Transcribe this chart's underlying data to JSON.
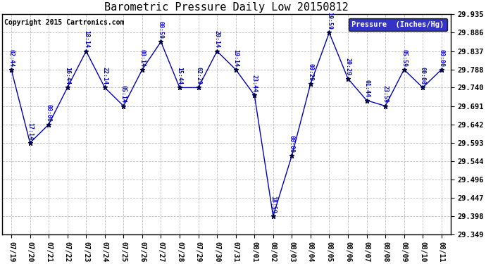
{
  "title": "Barometric Pressure Daily Low 20150812",
  "copyright": "Copyright 2015 Cartronics.com",
  "legend_label": "Pressure  (Inches/Hg)",
  "x_labels": [
    "07/19",
    "07/20",
    "07/21",
    "07/22",
    "07/23",
    "07/24",
    "07/25",
    "07/26",
    "07/27",
    "07/28",
    "07/29",
    "07/30",
    "07/31",
    "08/01",
    "08/02",
    "08/03",
    "08/04",
    "08/05",
    "08/06",
    "08/07",
    "08/08",
    "08/09",
    "08/10",
    "08/11"
  ],
  "point_labels": [
    "02:44",
    "17:14",
    "00:00",
    "16:44",
    "18:14",
    "22:14",
    "05:14",
    "00:14",
    "00:59",
    "15:44",
    "02:29",
    "20:14",
    "19:14",
    "23:44",
    "18:59",
    "00:00",
    "00:29",
    "19:59",
    "20:29",
    "01:44",
    "23:59",
    "05:59",
    "00:00",
    "00:00"
  ],
  "y_values": [
    29.788,
    29.593,
    29.642,
    29.74,
    29.837,
    29.74,
    29.691,
    29.788,
    29.862,
    29.74,
    29.74,
    29.837,
    29.788,
    29.72,
    29.398,
    29.559,
    29.75,
    29.886,
    29.764,
    29.706,
    29.691,
    29.788,
    29.74,
    29.788
  ],
  "ylim_min": 29.349,
  "ylim_max": 29.935,
  "y_ticks": [
    29.349,
    29.398,
    29.447,
    29.496,
    29.544,
    29.593,
    29.642,
    29.691,
    29.74,
    29.788,
    29.837,
    29.886,
    29.935
  ],
  "line_color": "#0000bb",
  "marker": "*",
  "marker_color": "#000044",
  "marker_size": 5,
  "bg_color": "#ffffff",
  "grid_color": "#bbbbbb",
  "grid_style": "--",
  "title_color": "#000000",
  "title_fontsize": 11,
  "copyright_color": "#000000",
  "copyright_fontsize": 7,
  "legend_bg": "#0000bb",
  "legend_text_color": "#ffffff",
  "legend_fontsize": 7.5,
  "label_fontsize": 6,
  "label_color": "#0000bb",
  "label_rotation": 270,
  "xtick_fontsize": 7,
  "ytick_fontsize": 7.5
}
